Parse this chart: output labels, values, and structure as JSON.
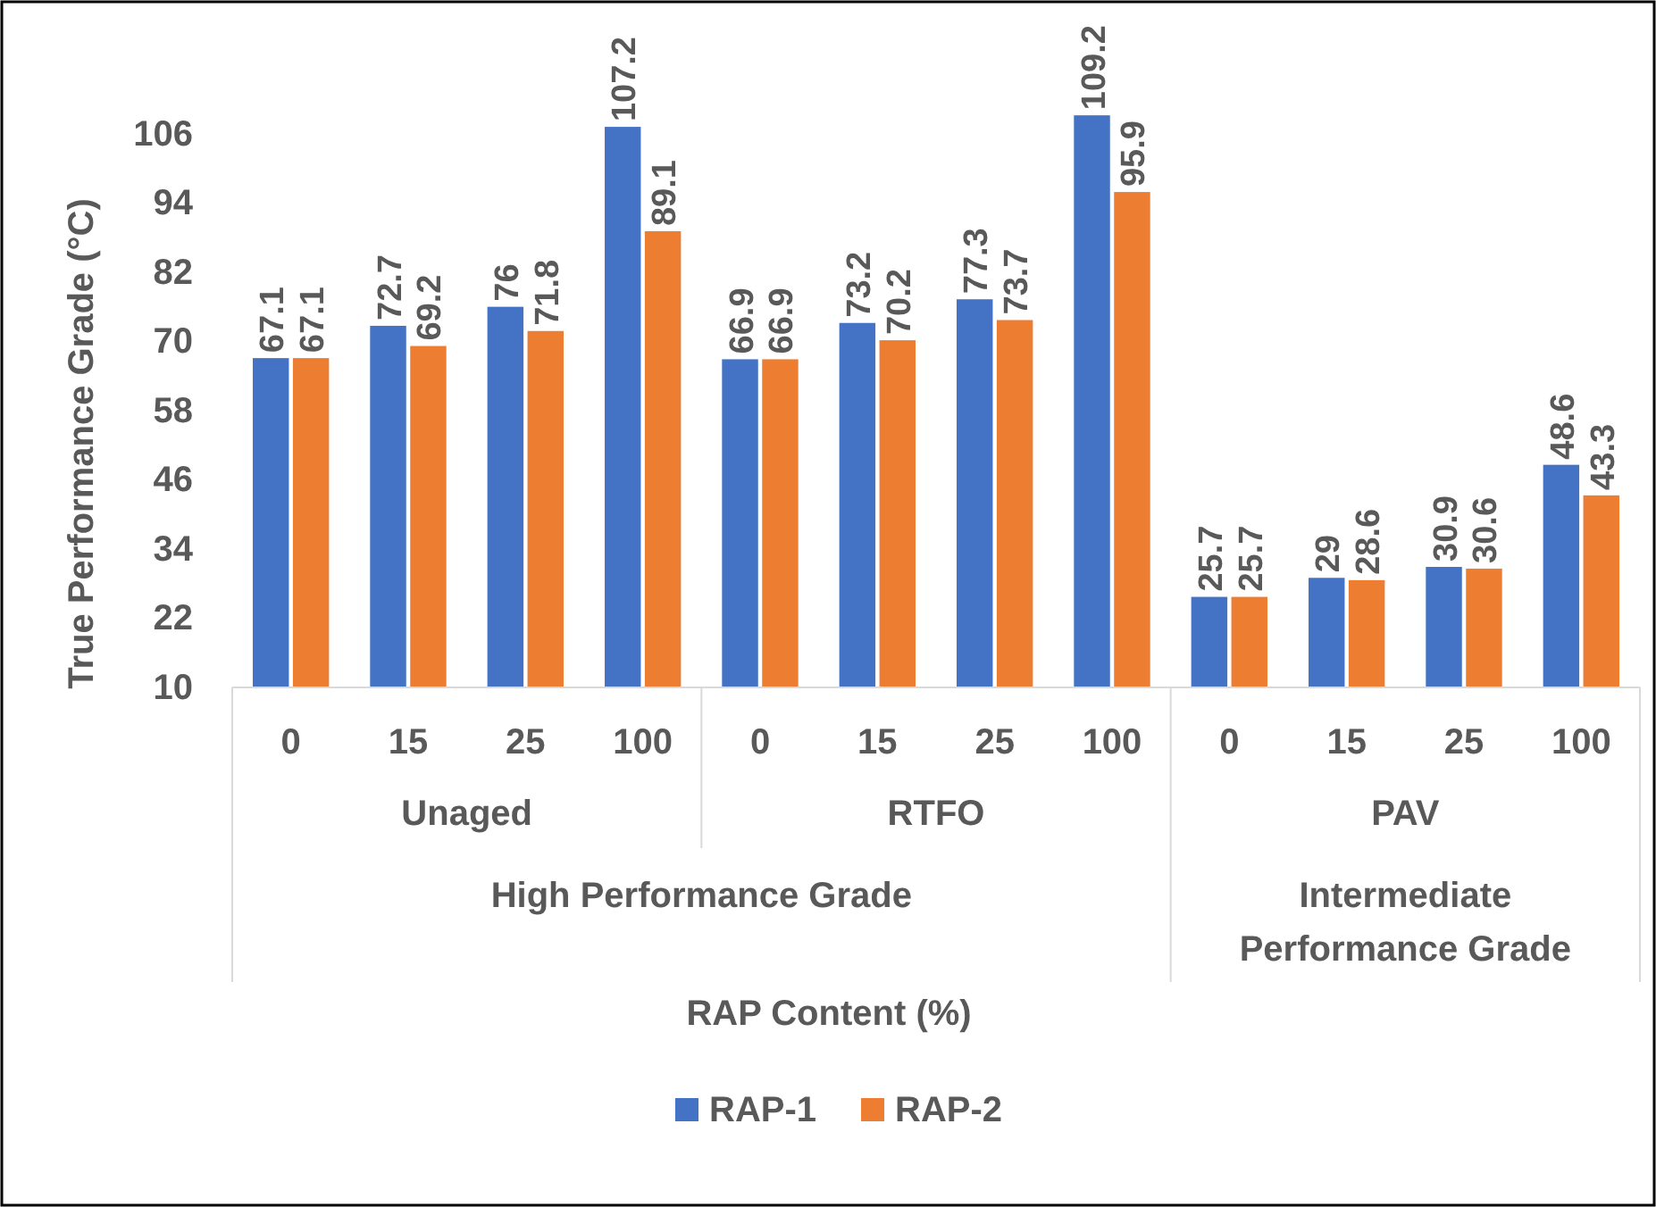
{
  "chart_data": {
    "type": "bar",
    "ylabel": "True Performance Grade (°C)",
    "categories": [
      "0",
      "15",
      "25",
      "100",
      "0",
      "15",
      "25",
      "100",
      "0",
      "15",
      "25",
      "100"
    ],
    "series": [
      {
        "name": "RAP-1",
        "color": "#4472c4",
        "values": [
          67.1,
          72.7,
          76,
          107.2,
          66.9,
          73.2,
          77.3,
          109.2,
          25.7,
          29,
          30.9,
          48.6
        ]
      },
      {
        "name": "RAP-2",
        "color": "#ed7d31",
        "values": [
          67.1,
          69.2,
          71.8,
          89.1,
          66.9,
          70.2,
          73.7,
          95.9,
          25.7,
          28.6,
          30.6,
          43.3
        ]
      }
    ],
    "ylim": [
      10,
      110
    ],
    "yticks": [
      10,
      22,
      34,
      46,
      58,
      70,
      82,
      94,
      106
    ],
    "data_labels": true,
    "grid": false,
    "legend": "bottom",
    "annotations": [
      "Unaged",
      "RTFO",
      "PAV",
      "High Performance Grade",
      "Intermediate Performance Grade",
      "RAP Content (%)"
    ]
  }
}
